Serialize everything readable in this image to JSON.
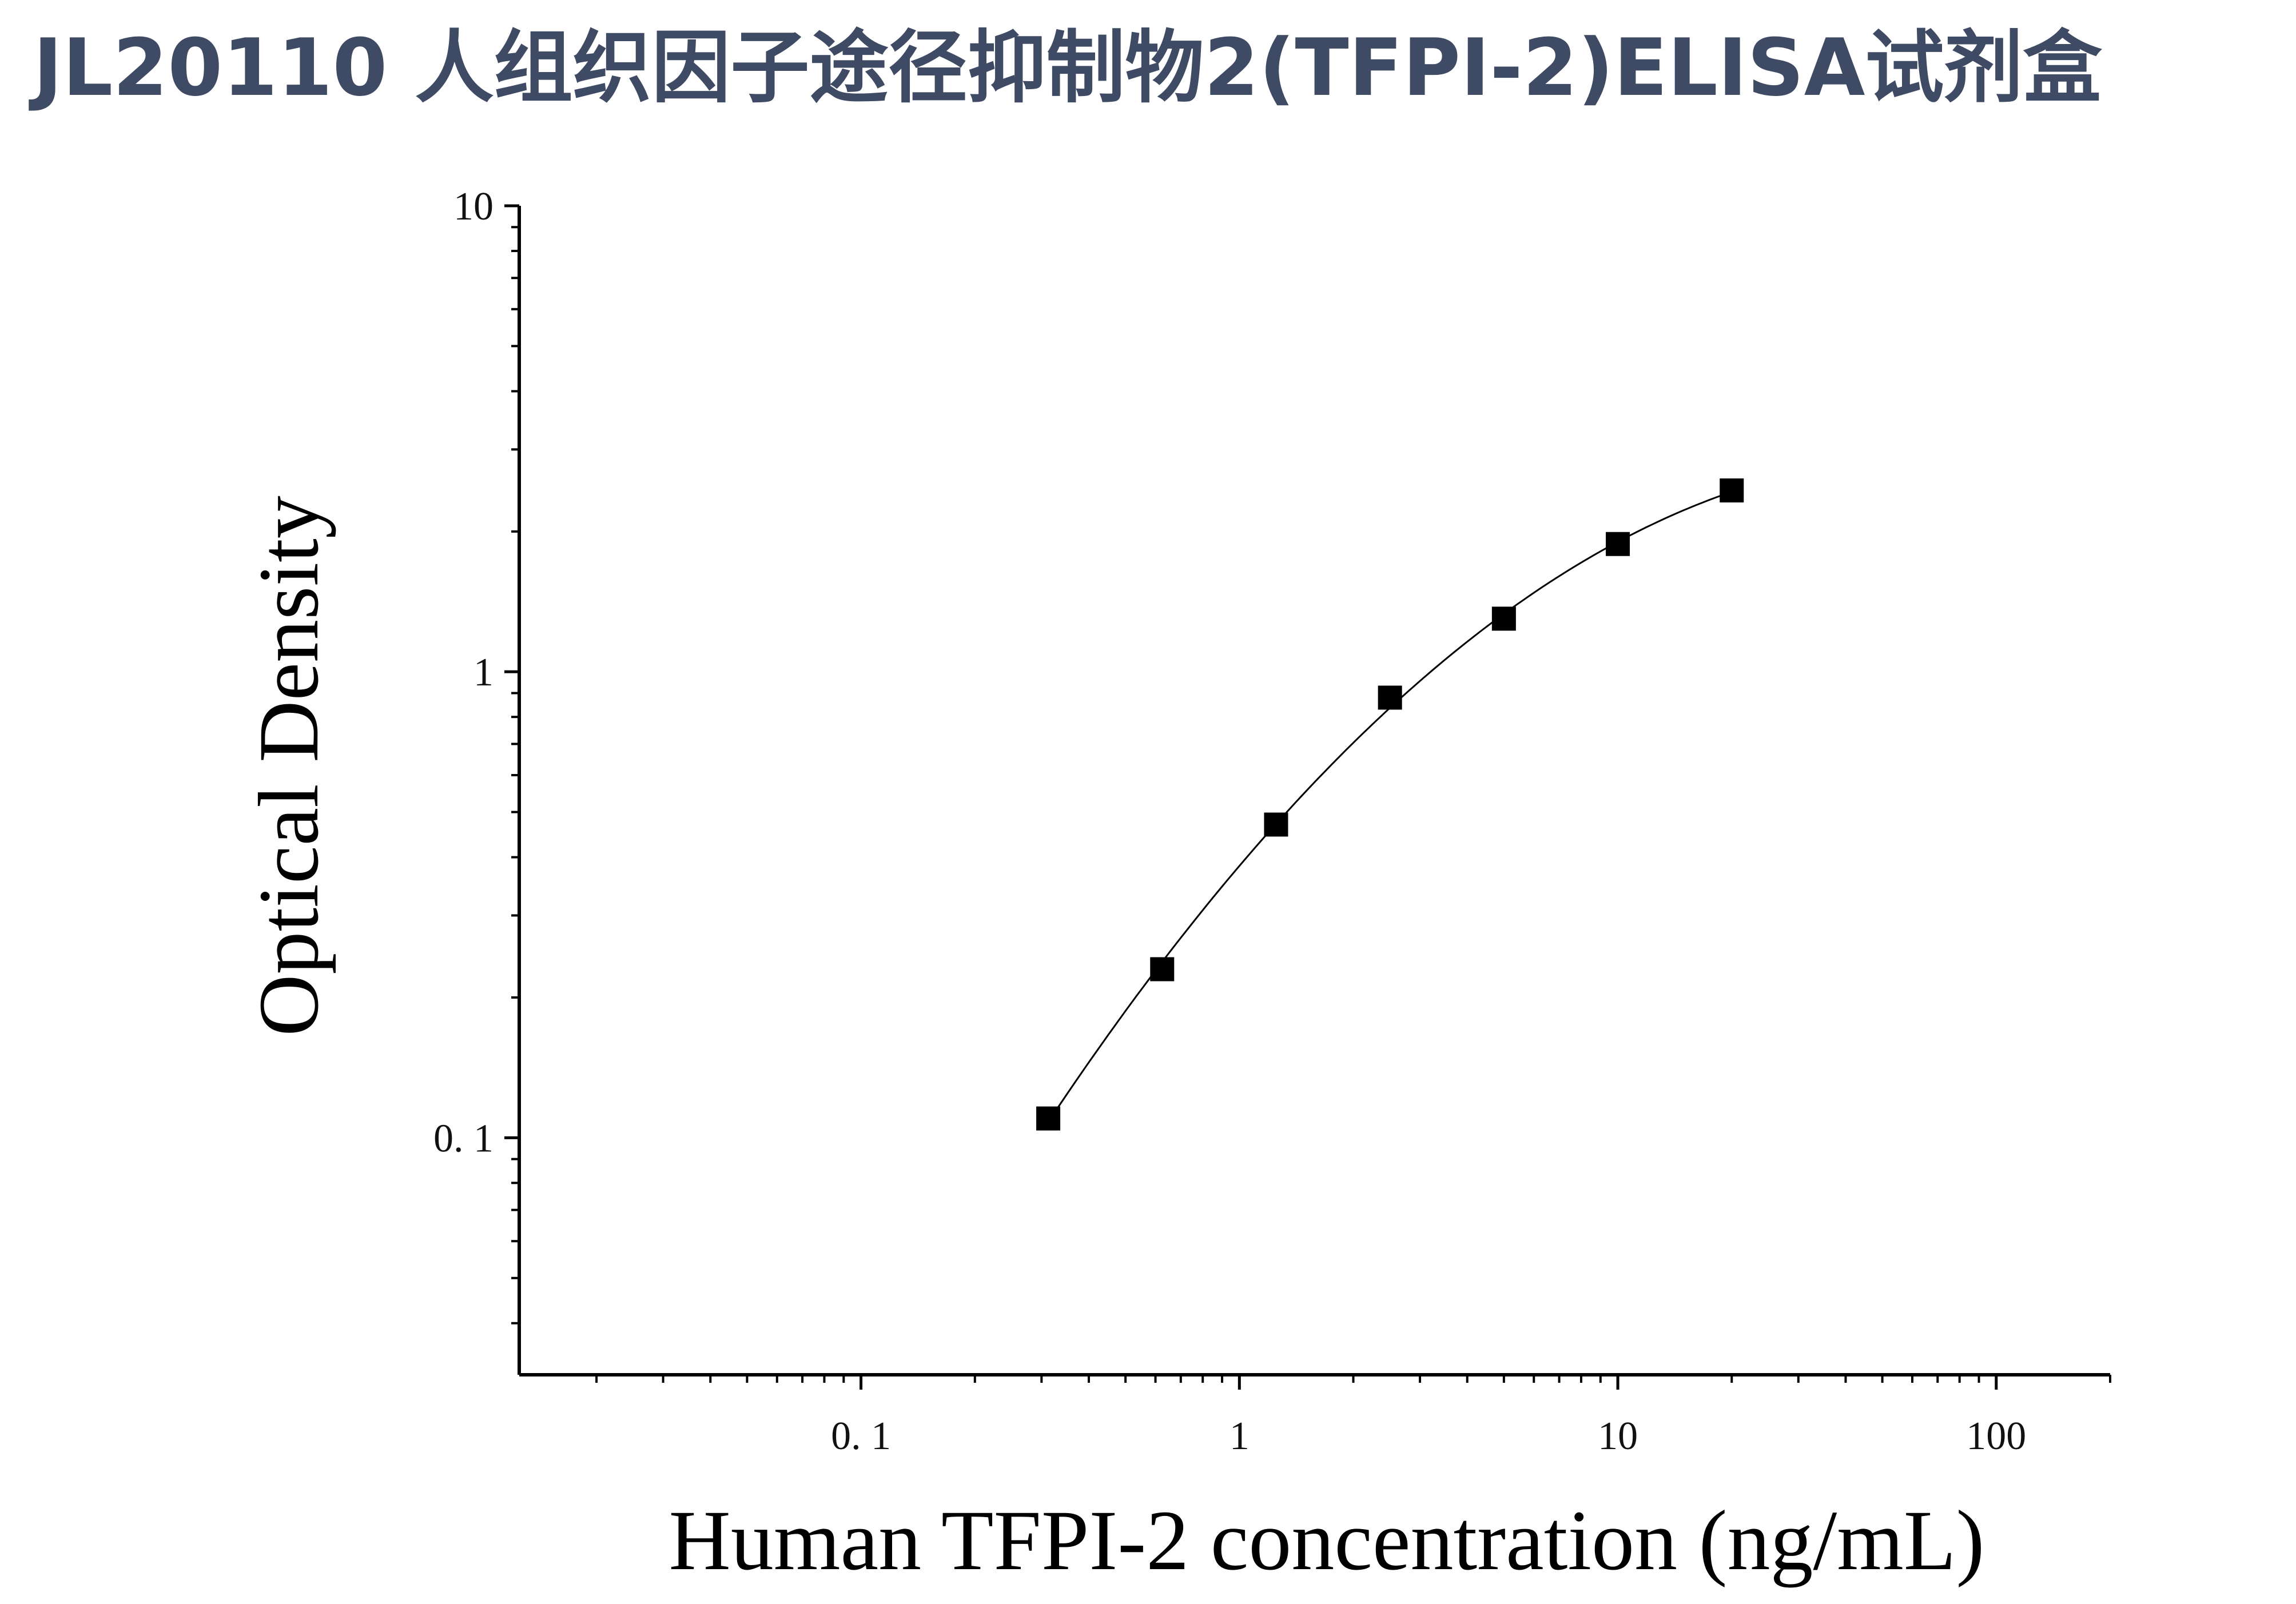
{
  "title": "JL20110 人组织因子途径抑制物2(TFPI-2)ELISA试剂盒",
  "chart_data": {
    "type": "scatter",
    "title": "JL20110 人组织因子途径抑制物2(TFPI-2)ELISA试剂盒",
    "xlabel": "Human TFPI-2 concentration (ng/mL)",
    "ylabel": "Optical Density",
    "x_scale": "log",
    "y_scale": "log",
    "xlim": [
      0.0125,
      200
    ],
    "ylim": [
      0.031,
      10
    ],
    "x_ticks": [
      {
        "value": 0.1,
        "label": "0. 1"
      },
      {
        "value": 1,
        "label": "1"
      },
      {
        "value": 10,
        "label": "10"
      },
      {
        "value": 100,
        "label": "100"
      }
    ],
    "y_ticks": [
      {
        "value": 0.1,
        "label": "0. 1"
      },
      {
        "value": 1,
        "label": "1"
      },
      {
        "value": 10,
        "label": "10"
      }
    ],
    "grid": false,
    "series": [
      {
        "marker": "square",
        "color": "#000000",
        "x": [
          0.3125,
          0.625,
          1.25,
          2.5,
          5,
          10,
          20
        ],
        "y": [
          0.11,
          0.23,
          0.47,
          0.88,
          1.3,
          1.88,
          2.45
        ]
      }
    ],
    "fit_curve": {
      "type": "curve",
      "color": "#000000"
    }
  }
}
